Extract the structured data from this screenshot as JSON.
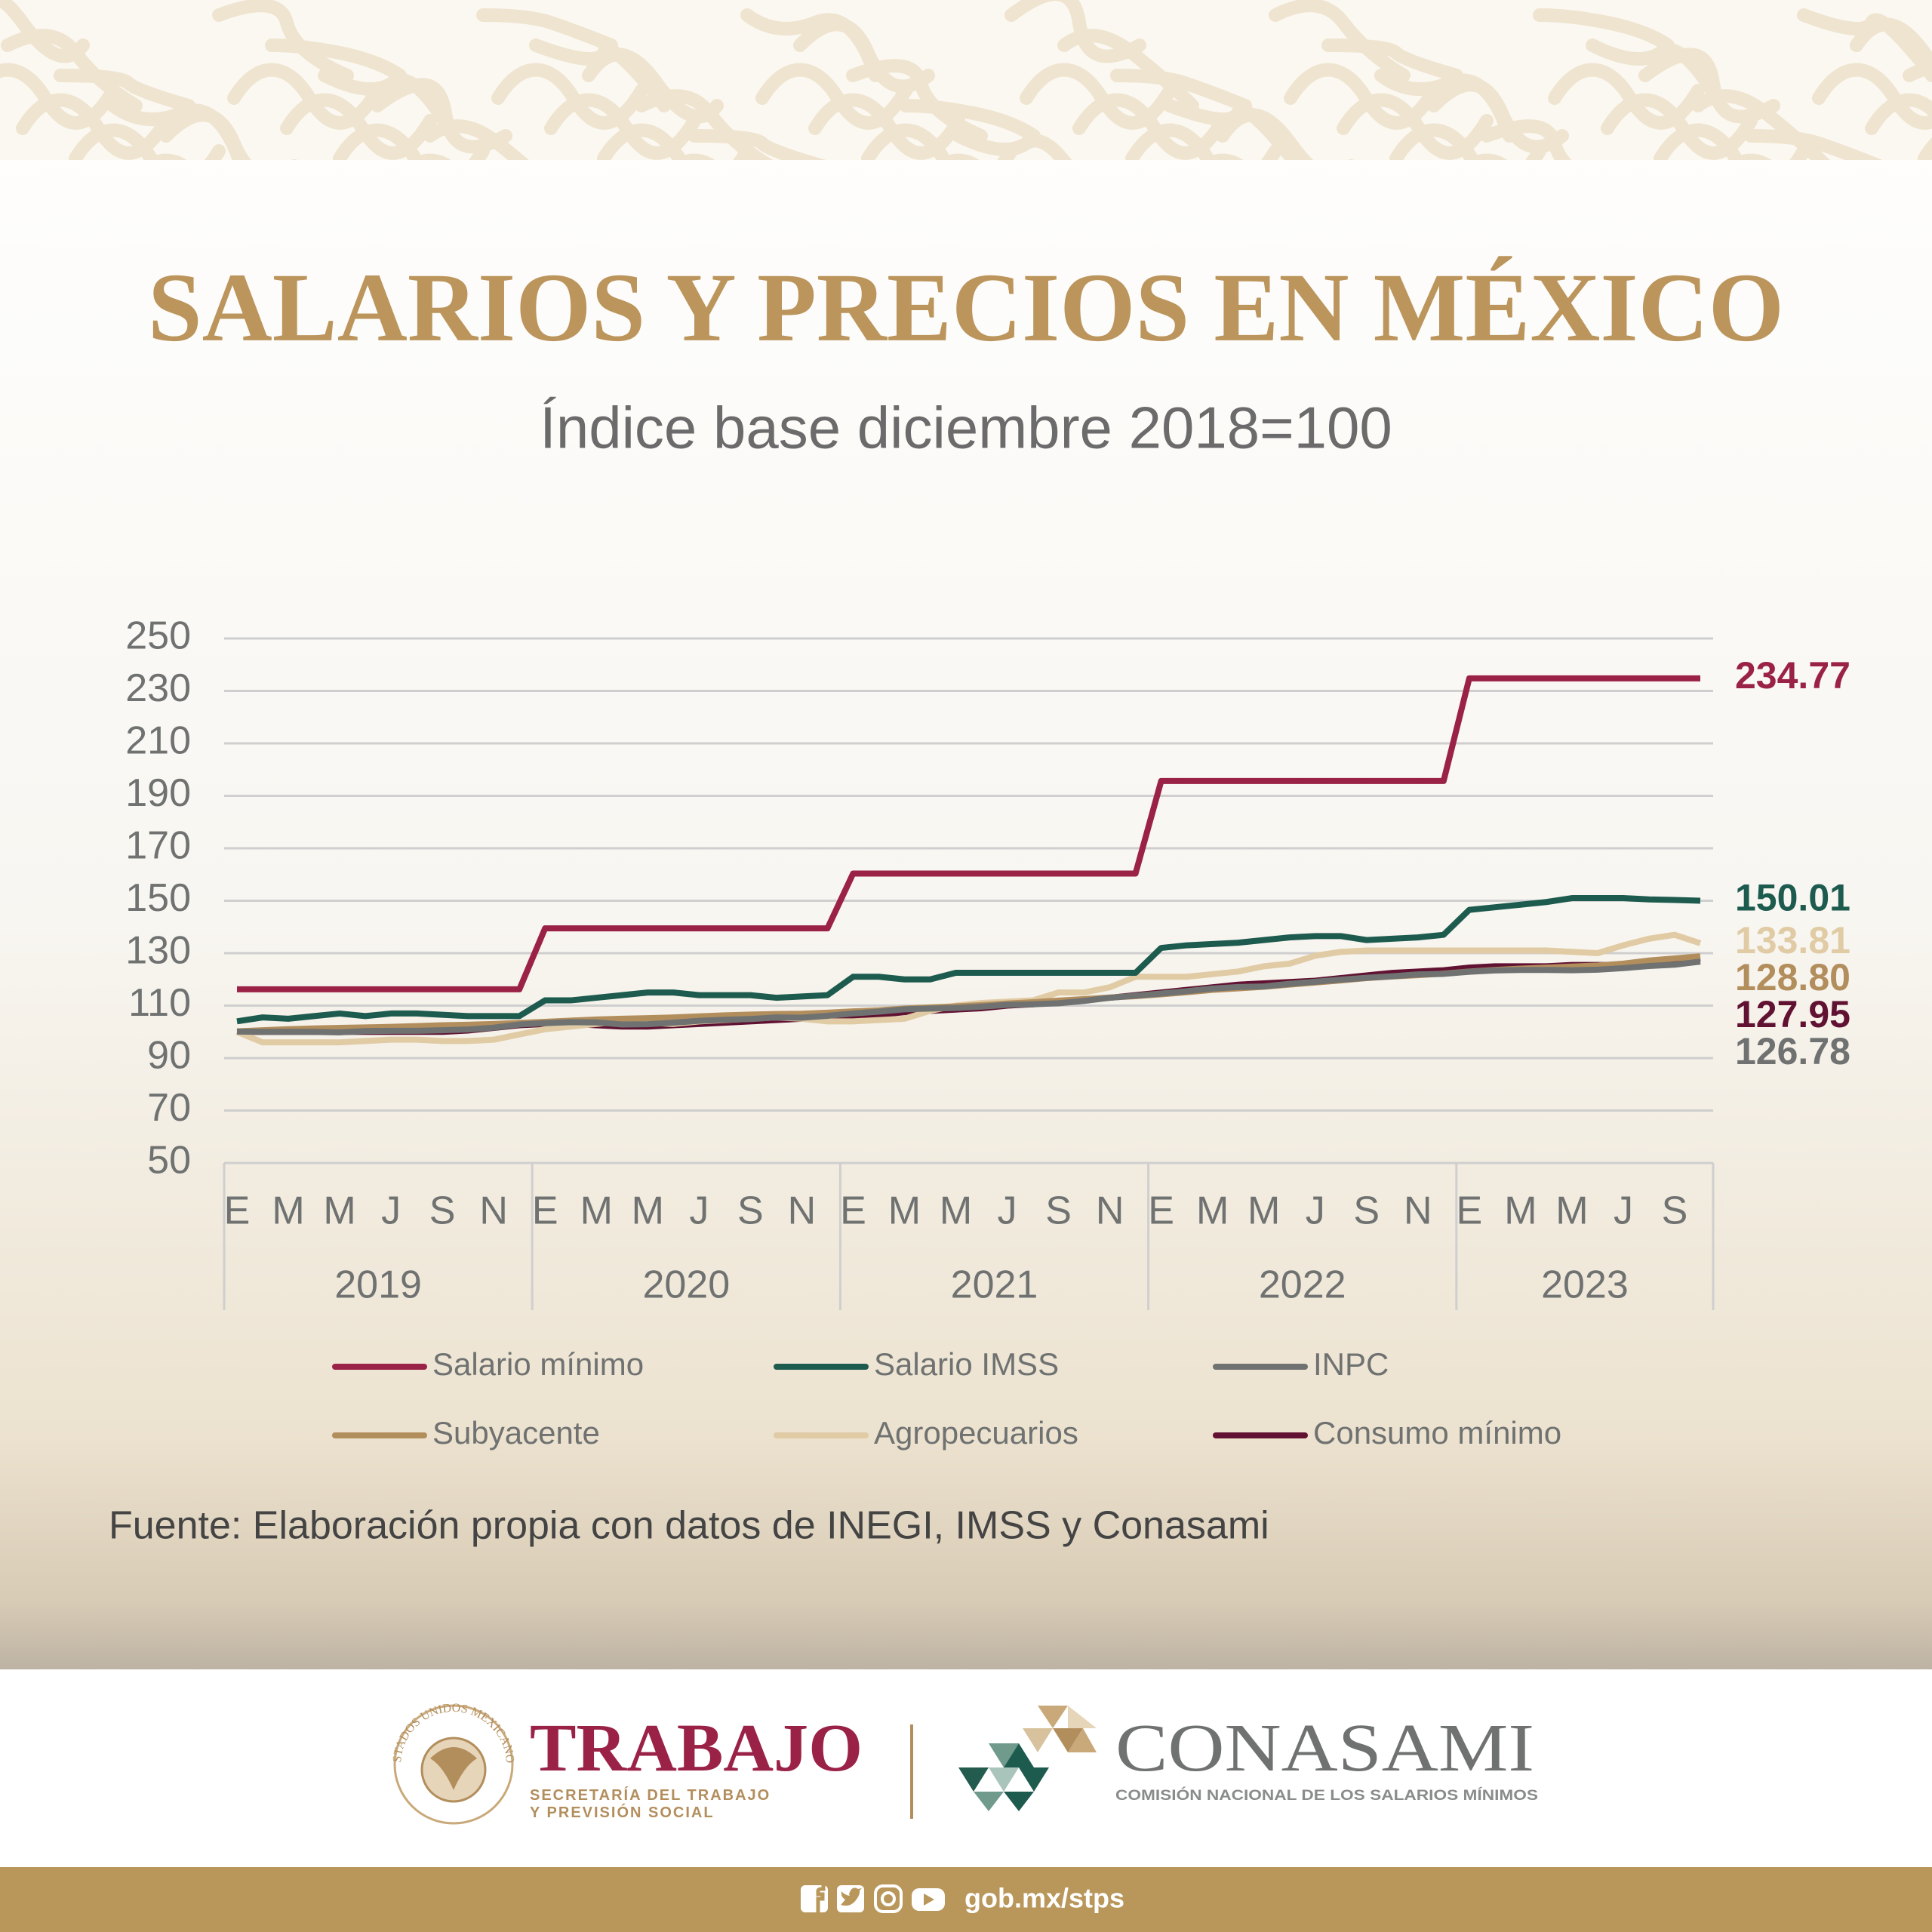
{
  "chart_data": {
    "type": "line",
    "title": "SALARIOS Y PRECIOS EN MÉXICO",
    "subtitle": "Índice base diciembre 2018=100",
    "source": "Fuente: Elaboración propia con datos de INEGI, IMSS y Conasami",
    "categories": [
      "E",
      null,
      "M",
      null,
      "M",
      null,
      "J",
      null,
      "S",
      null,
      "N",
      null,
      "E",
      null,
      "M",
      null,
      "M",
      null,
      "J",
      null,
      "S",
      null,
      "N",
      null,
      "E",
      null,
      "M",
      null,
      "M",
      null,
      "J",
      null,
      "S",
      null,
      "N",
      null,
      "E",
      null,
      "M",
      null,
      "M",
      null,
      "J",
      null,
      "S",
      null,
      "N",
      null,
      "E",
      null,
      "M",
      null,
      "M",
      null,
      "J",
      null,
      "S",
      null
    ],
    "years": [
      "2019",
      "2020",
      "2021",
      "2022",
      "2023"
    ],
    "ylim": [
      50,
      250
    ],
    "yticks": [
      50,
      70,
      90,
      110,
      130,
      150,
      170,
      190,
      210,
      230,
      250
    ],
    "grid": true,
    "series": [
      {
        "name": "Salario mínimo",
        "color": "#9b2247",
        "values": [
          116.21,
          116.21,
          116.21,
          116.21,
          116.21,
          116.21,
          116.21,
          116.21,
          116.21,
          116.21,
          116.21,
          116.21,
          139.45,
          139.45,
          139.45,
          139.45,
          139.45,
          139.45,
          139.45,
          139.45,
          139.45,
          139.45,
          139.45,
          139.45,
          160.37,
          160.37,
          160.37,
          160.37,
          160.37,
          160.37,
          160.37,
          160.37,
          160.37,
          160.37,
          160.37,
          160.37,
          195.65,
          195.65,
          195.65,
          195.65,
          195.65,
          195.65,
          195.65,
          195.65,
          195.65,
          195.65,
          195.65,
          195.65,
          234.77,
          234.77,
          234.77,
          234.77,
          234.77,
          234.77,
          234.77,
          234.77,
          234.77,
          234.77
        ]
      },
      {
        "name": "Salario IMSS",
        "color": "#1e5b4f",
        "values": [
          104,
          105.5,
          105,
          106,
          107,
          106,
          107,
          107,
          106.5,
          106,
          106,
          106,
          112,
          112,
          113,
          114,
          115,
          115,
          114,
          114,
          114,
          113,
          113.5,
          114,
          121,
          121,
          120,
          120,
          122.5,
          122.5,
          122.5,
          122.5,
          122.5,
          122.5,
          122.5,
          122.5,
          132,
          133,
          133.5,
          134,
          135,
          136,
          136.5,
          136.5,
          135,
          135.5,
          136,
          137,
          146.5,
          147.5,
          148.5,
          149.5,
          151,
          151,
          151,
          150.5,
          150.3,
          150.01
        ]
      },
      {
        "name": "INPC",
        "color": "#6f7271",
        "values": [
          100.1,
          100,
          100,
          100,
          99.8,
          100.3,
          100.4,
          100.4,
          100.6,
          100.9,
          101.6,
          102.8,
          103.3,
          103.7,
          103.6,
          102.8,
          102.9,
          103.5,
          104.2,
          104.6,
          104.9,
          105.5,
          105.4,
          106.1,
          107,
          107.7,
          108.6,
          108.9,
          109.1,
          109.6,
          110.3,
          110.5,
          110.9,
          111.8,
          113,
          113.8,
          114.6,
          115.5,
          116.5,
          117.1,
          117.3,
          118.3,
          119.1,
          119.9,
          120.6,
          121.2,
          121.9,
          122.1,
          122.9,
          123.4,
          123.6,
          123.6,
          123.5,
          123.7,
          124.3,
          125.1,
          125.6,
          126.78
        ]
      },
      {
        "name": "Subyacente",
        "color": "#b38e5d",
        "values": [
          100.2,
          100.6,
          101,
          101.3,
          101.5,
          101.7,
          101.9,
          102.2,
          102.5,
          102.7,
          103,
          103.4,
          103.8,
          104.3,
          104.7,
          105,
          105.2,
          105.5,
          105.9,
          106.3,
          106.6,
          106.8,
          106.9,
          107.3,
          107.8,
          108.2,
          108.9,
          109.3,
          109.7,
          110.2,
          110.8,
          111.3,
          111.9,
          112.5,
          113.1,
          113.6,
          114.3,
          115.1,
          116,
          116.6,
          117.2,
          118,
          118.8,
          119.6,
          120.5,
          121.1,
          121.6,
          122.2,
          123,
          123.6,
          124.1,
          124.5,
          124.9,
          125.3,
          126,
          127.2,
          128,
          128.8
        ],
        "value_labels": [
          null,
          null,
          null,
          null,
          null,
          null,
          null,
          null,
          null,
          null,
          null,
          null,
          null,
          null,
          null,
          null,
          null,
          null,
          null,
          null,
          null,
          null,
          null,
          null,
          null,
          null,
          null,
          null,
          null,
          null,
          null,
          null,
          null,
          null,
          null,
          null,
          null,
          null,
          null,
          null,
          null,
          null,
          null,
          null,
          null,
          null,
          null,
          null,
          null,
          null,
          null,
          null,
          null,
          null,
          null,
          null,
          null,
          "128.80"
        ]
      },
      {
        "name": "Agropecuarios",
        "color": "#e0cba4",
        "values": [
          100,
          96,
          96,
          96,
          96,
          96.5,
          97,
          97,
          96.5,
          96.5,
          97,
          99,
          101,
          102,
          103,
          104,
          103.5,
          103,
          104,
          104.5,
          105,
          105.5,
          105,
          104,
          104,
          104.5,
          105,
          108,
          110,
          111,
          111.5,
          112,
          115,
          115,
          117,
          121,
          121,
          121,
          122,
          123,
          125,
          126,
          129,
          130.5,
          131,
          131,
          131,
          131,
          131,
          131,
          131,
          131,
          130.5,
          130,
          133,
          135.5,
          137,
          133.81
        ]
      },
      {
        "name": "Consumo mínimo",
        "color": "#611232",
        "values": [
          100,
          100,
          100,
          100,
          100,
          100,
          100,
          100,
          100,
          100.5,
          101.5,
          102.5,
          103,
          103,
          102.5,
          102,
          102,
          102.5,
          103,
          103.5,
          104,
          104.5,
          105,
          105.5,
          106,
          106.5,
          107.5,
          108,
          108.5,
          109,
          110,
          110.5,
          111.5,
          112,
          113,
          114,
          115,
          116,
          117,
          118,
          118.5,
          119,
          119.5,
          120.5,
          121.5,
          122.5,
          123,
          123.5,
          124.5,
          125,
          125,
          125,
          125.5,
          125.5,
          125.5,
          126,
          127,
          127.95
        ]
      }
    ]
  },
  "footer": {
    "trabajo": {
      "seal": "ESTADOS UNIDOS MEXICANOS",
      "name": "TRABAJO",
      "lines": [
        "SECRETARÍA DEL TRABAJO",
        "Y PREVISIÓN SOCIAL"
      ]
    },
    "conasami": {
      "name": "CONASAMI",
      "subtitle": "COMISIÓN NACIONAL DE LOS SALARIOS MÍNIMOS"
    },
    "url": "gob.mx/stps"
  }
}
